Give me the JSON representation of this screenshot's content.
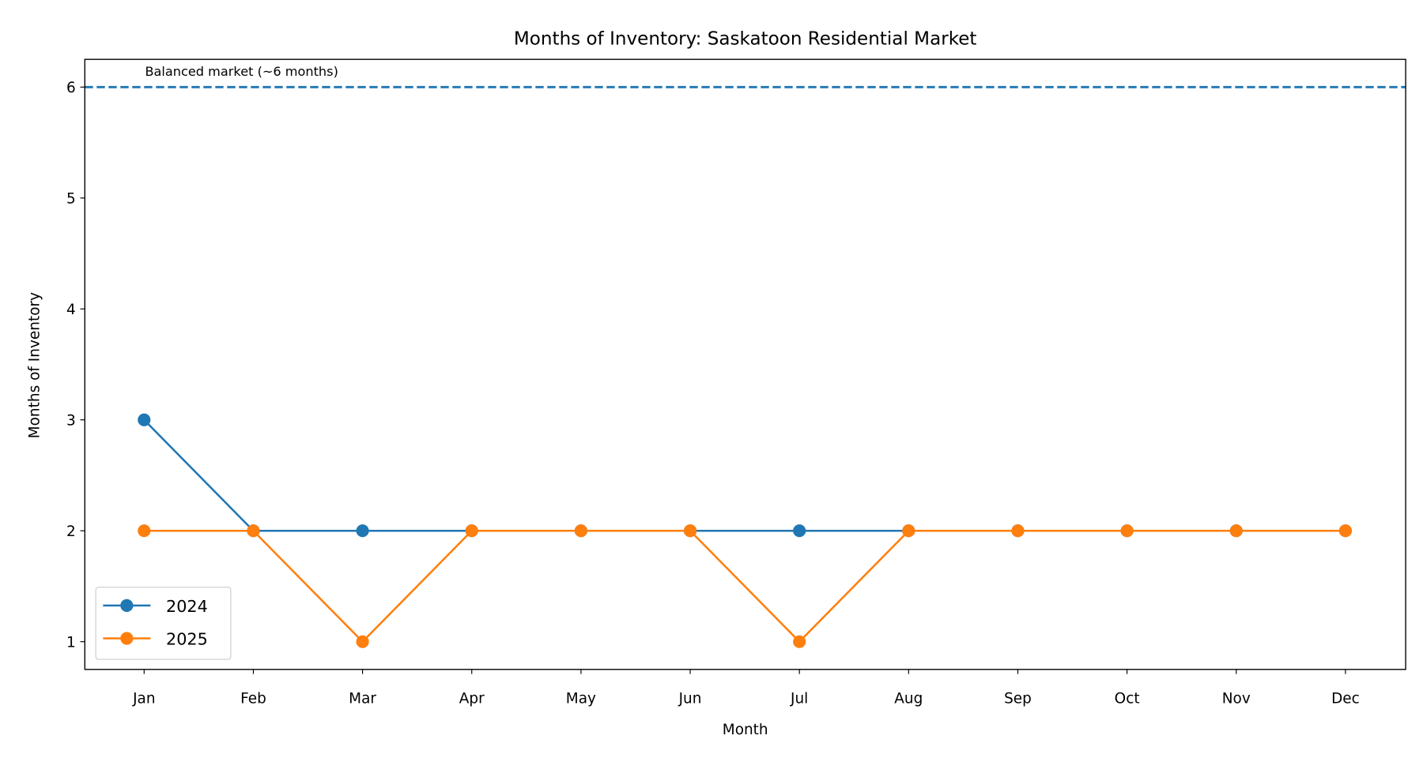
{
  "chart_data": {
    "type": "line",
    "title": "Months of Inventory: Saskatoon Residential Market",
    "xlabel": "Month",
    "ylabel": "Months of Inventory",
    "categories": [
      "Jan",
      "Feb",
      "Mar",
      "Apr",
      "May",
      "Jun",
      "Jul",
      "Aug",
      "Sep",
      "Oct",
      "Nov",
      "Dec"
    ],
    "ylim": [
      0.75,
      6.25
    ],
    "yticks": [
      1,
      2,
      3,
      4,
      5,
      6
    ],
    "grid": false,
    "legend_position": "lower-left",
    "series": [
      {
        "name": "2024",
        "color": "#1f77b4",
        "values": [
          3,
          2,
          2,
          2,
          2,
          2,
          2,
          2,
          2,
          2,
          2,
          2
        ]
      },
      {
        "name": "2025",
        "color": "#ff7f0e",
        "values": [
          2,
          2,
          1,
          2,
          2,
          2,
          1,
          2,
          2,
          2,
          2,
          2
        ]
      }
    ],
    "reference_line": {
      "value": 6,
      "label": "Balanced market (~6 months)",
      "color": "#1f77b4",
      "style": "dashed"
    }
  }
}
